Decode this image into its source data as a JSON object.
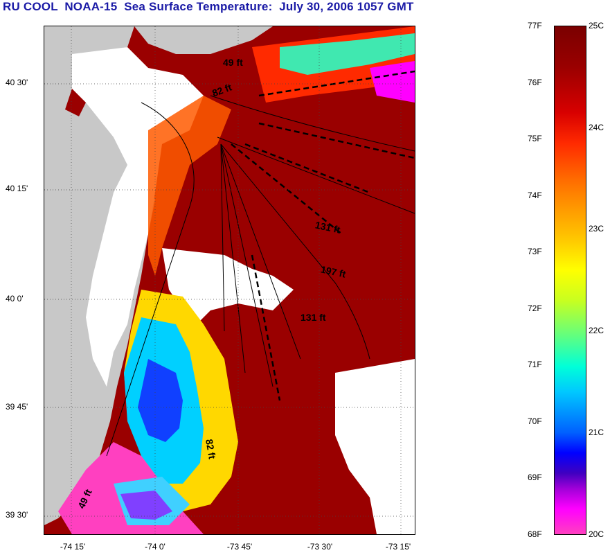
{
  "title": "RU COOL  NOAA-15  Sea Surface Temperature:  July 30, 2006 1057 GMT",
  "map": {
    "y_ticks": [
      "40 30'",
      "40 15'",
      "40 0'",
      "39 45'",
      "39 30'"
    ],
    "x_ticks": [
      "-74 15'",
      "-74 0'",
      "-73 45'",
      "-73 30'",
      "-73 15'"
    ],
    "contour_labels": [
      "49 ft",
      "82 ft",
      "131 ft",
      "197 ft",
      "131 ft",
      "82 ft",
      "49 ft"
    ],
    "colors": {
      "land": "#c8c8c8",
      "warm": "#9a0000",
      "cold": "#ff40c0",
      "cloud": "#ffffff"
    }
  },
  "colorbar": {
    "fahrenheit": [
      "77F",
      "76F",
      "75F",
      "74F",
      "73F",
      "72F",
      "71F",
      "70F",
      "69F",
      "68F"
    ],
    "celsius": [
      "25C",
      "24C",
      "23C",
      "22C",
      "21C",
      "20C"
    ]
  }
}
